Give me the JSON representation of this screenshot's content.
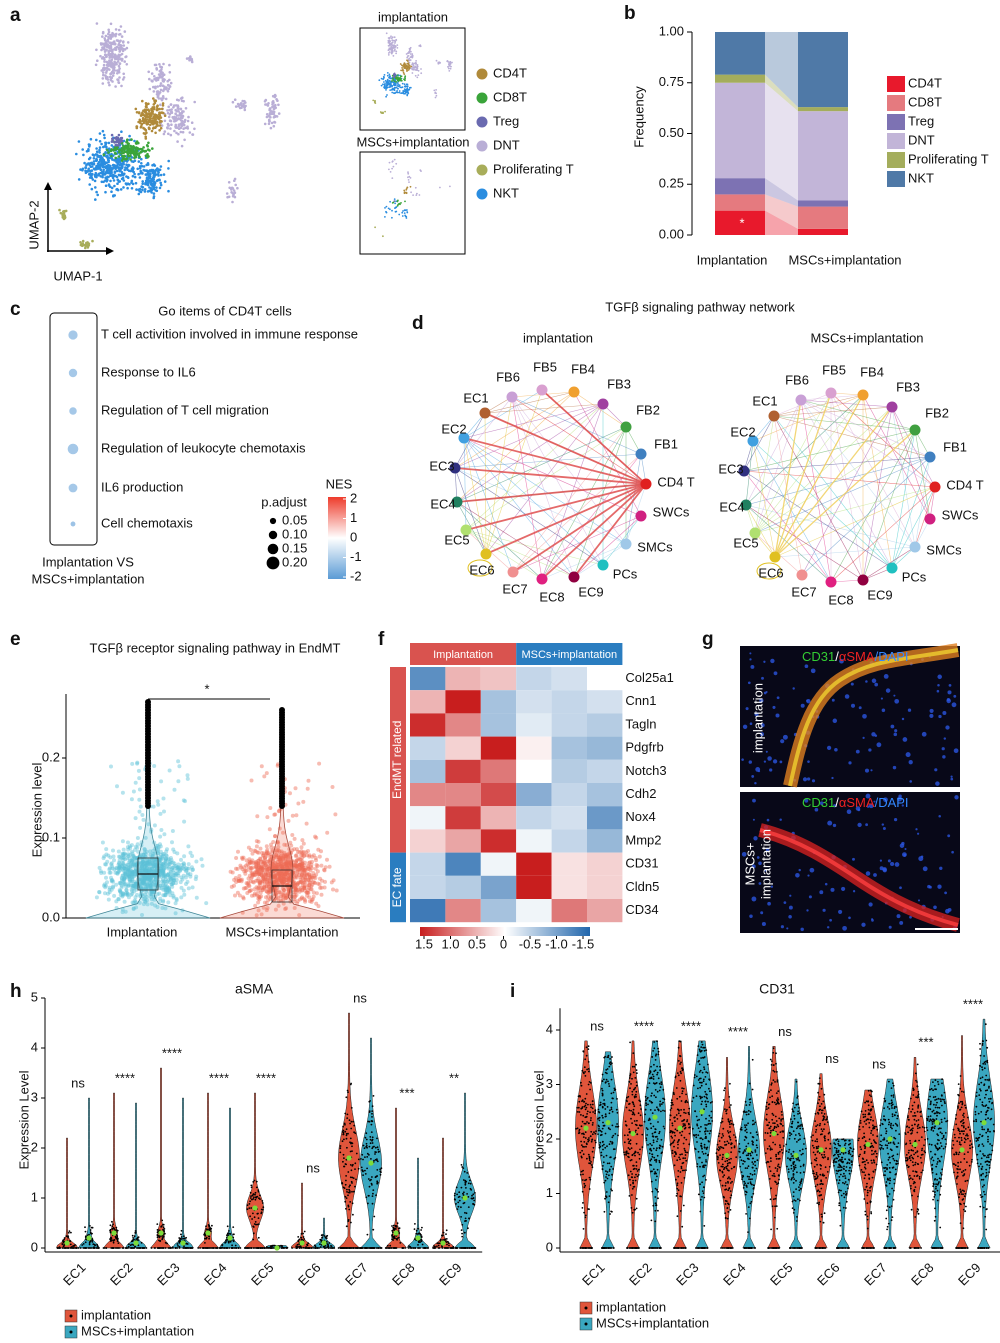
{
  "panel_labels": [
    "a",
    "b",
    "c",
    "d",
    "e",
    "f",
    "g",
    "h",
    "i"
  ],
  "umap": {
    "x_label": "UMAP-1",
    "y_label": "UMAP-2",
    "insets": [
      "implantation",
      "MSCs+implantation"
    ],
    "legend": [
      {
        "name": "CD4T",
        "color": "#b08a3a"
      },
      {
        "name": "CD8T",
        "color": "#3aa43a"
      },
      {
        "name": "Treg",
        "color": "#6a6ab0"
      },
      {
        "name": "DNT",
        "color": "#b9aed6"
      },
      {
        "name": "Proliferating T",
        "color": "#a8ad5a"
      },
      {
        "name": "NKT",
        "color": "#2a8de0"
      }
    ]
  },
  "network": {
    "title": "TGFβ signaling pathway network",
    "groups": [
      "implantation",
      "MSCs+implantation"
    ],
    "nodes": [
      {
        "label": "FB5",
        "color": "#d9a0d0"
      },
      {
        "label": "FB4",
        "color": "#f0a030"
      },
      {
        "label": "FB3",
        "color": "#a040a0"
      },
      {
        "label": "FB2",
        "color": "#40a040"
      },
      {
        "label": "FB1",
        "color": "#4080c0"
      },
      {
        "label": "CD4 T",
        "color": "#e02020"
      },
      {
        "label": "SWCs",
        "color": "#d02080"
      },
      {
        "label": "SMCs",
        "color": "#a0c8e8"
      },
      {
        "label": "PCs",
        "color": "#20c0c0"
      },
      {
        "label": "EC9",
        "color": "#900040"
      },
      {
        "label": "EC8",
        "color": "#e02080"
      },
      {
        "label": "EC7",
        "color": "#f09090"
      },
      {
        "label": "EC6",
        "color": "#e0c020"
      },
      {
        "label": "EC5",
        "color": "#b0e070"
      },
      {
        "label": "EC4",
        "color": "#208060"
      },
      {
        "label": "EC3",
        "color": "#303080"
      },
      {
        "label": "EC2",
        "color": "#40a0e0"
      },
      {
        "label": "EC1",
        "color": "#b06030"
      },
      {
        "label": "FB6",
        "color": "#c9a0d6"
      }
    ]
  },
  "images": {
    "stains": [
      {
        "text": "CD31",
        "color": "#33cc33"
      },
      {
        "text": "αSMA",
        "color": "#ee2222"
      },
      {
        "text": "DAPI",
        "color": "#3388ff"
      }
    ],
    "separator": "/",
    "labels": [
      [
        "implantation"
      ],
      [
        "MSCs+",
        "implantation"
      ]
    ]
  },
  "chart_data": [
    {
      "type": "stacked_bar",
      "y_label": "Frequency",
      "categories": [
        "Implantation",
        "MSCs+implantation"
      ],
      "series": [
        {
          "name": "CD4T",
          "color": "#e8192c",
          "values": [
            0.12,
            0.03
          ]
        },
        {
          "name": "CD8T",
          "color": "#e57a7f",
          "values": [
            0.08,
            0.11
          ]
        },
        {
          "name": "Treg",
          "color": "#7d72b3",
          "values": [
            0.08,
            0.03
          ]
        },
        {
          "name": "DNT",
          "color": "#c2b5d8",
          "values": [
            0.47,
            0.44
          ]
        },
        {
          "name": "Proliferating T",
          "color": "#a4ad5c",
          "values": [
            0.04,
            0.02
          ]
        },
        {
          "name": "NKT",
          "color": "#4f79a7",
          "values": [
            0.21,
            0.37
          ]
        }
      ],
      "ylim": [
        0,
        1
      ],
      "yticks": [
        {
          "value": 0,
          "label": "0.00"
        },
        0.25,
        {
          "value": 0.5,
          "label": "0.50"
        },
        0.75,
        {
          "value": 1,
          "label": "1.00"
        }
      ],
      "annotations": [
        "*"
      ]
    },
    {
      "type": "dot",
      "title": "Go items of CD4T cells",
      "categories": [
        "T cell activition involved in immune response",
        "Response to IL6",
        "Regulation of T cell migration",
        "Regulation of leukocyte chemotaxis",
        "IL6 production",
        "Cell chemotaxis"
      ],
      "values": [
        0.12,
        0.1,
        0.08,
        0.15,
        0.11,
        0.02
      ],
      "color_values": [
        -1.1,
        -1.1,
        -1.1,
        -1.1,
        -1.1,
        -1.2
      ],
      "x_label_lines": [
        "Implantation VS",
        "MSCs+implantation"
      ],
      "size_legend_title": "p.adjust",
      "size_ticks": [
        0.05,
        {
          "value": 0.1,
          "label": "0.10"
        },
        0.15,
        {
          "value": 0.2,
          "label": "0.20"
        }
      ],
      "color_legend_title": "NES",
      "color_ticks": [
        2,
        1,
        0,
        -1,
        -2
      ],
      "clim": [
        -2,
        2
      ],
      "colors": [
        "#5b9bd5",
        "#ffffff",
        "#ee3b2b"
      ]
    },
    {
      "type": "violin",
      "title": "TGFβ receptor signaling pathway in EndMT",
      "y_label": "Expression level",
      "categories": [
        "Implantation",
        "MSCs+implantation"
      ],
      "colors": [
        "#5bc0d8",
        "#ee6a55"
      ],
      "medians": [
        0.055,
        0.04
      ],
      "maxima": [
        0.27,
        0.26
      ],
      "ylim": [
        0,
        0.28
      ],
      "yticks": [
        {
          "value": 0,
          "label": "0.0"
        },
        0.1,
        0.2
      ],
      "significance": "*"
    },
    {
      "type": "heatmap",
      "column_groups": [
        {
          "name": "Implantation",
          "span": 3,
          "color": "#d9534f"
        },
        {
          "name": "MSCs+implantation",
          "span": 3,
          "color": "#2a7dc0"
        }
      ],
      "row_groups": [
        {
          "name": "EndMT related",
          "span": 8,
          "color": "#d9534f"
        },
        {
          "name": "EC fate",
          "span": 3,
          "color": "#2a7dc0"
        }
      ],
      "rows": [
        "Col25a1",
        "Cnn1",
        "Tagln",
        "Pdgfrb",
        "Notch3",
        "Cdh2",
        "Nox4",
        "Mmp2",
        "CD31",
        "Cldn5",
        "CD34"
      ],
      "values": [
        [
          -1.1,
          0.5,
          0.4,
          -0.4,
          -0.3,
          0
        ],
        [
          0.5,
          1.5,
          -0.6,
          -0.3,
          -0.4,
          -0.3
        ],
        [
          1.4,
          0.8,
          -0.6,
          -0.2,
          -0.4,
          -0.5
        ],
        [
          -0.4,
          0.3,
          1.5,
          0.1,
          -0.6,
          -0.7
        ],
        [
          -0.6,
          1.3,
          0.9,
          0,
          -0.5,
          -0.4
        ],
        [
          0.8,
          0.8,
          1.2,
          -0.8,
          -0.4,
          -0.6
        ],
        [
          -0.1,
          1.3,
          0.5,
          -0.4,
          -0.3,
          -1
        ],
        [
          0.3,
          0.6,
          1.4,
          -0.1,
          -0.4,
          -0.7
        ],
        [
          -0.4,
          -1.2,
          -0.1,
          1.5,
          0.2,
          0.3
        ],
        [
          -0.4,
          -0.5,
          -0.9,
          1.6,
          0.2,
          0.3
        ],
        [
          -1.3,
          0.8,
          -0.6,
          -0.1,
          0.9,
          0.6
        ]
      ],
      "clim": [
        -1.5,
        1.5
      ],
      "colors": [
        "#2166ac",
        "#ffffff",
        "#c81e1e"
      ],
      "colorbar_ticks": [
        1.5,
        {
          "value": 1,
          "label": "1.0"
        },
        0.5,
        0,
        -0.5,
        {
          "value": -1,
          "label": "-1.0"
        },
        -1.5
      ]
    },
    {
      "type": "split_violin",
      "title": "aSMA",
      "y_label": "Expression Level",
      "categories": [
        "EC1",
        "EC2",
        "EC3",
        "EC4",
        "EC5",
        "EC6",
        "EC7",
        "EC8",
        "EC9"
      ],
      "series": [
        {
          "name": "implantation",
          "color": "#e0553b",
          "values": [
            0.1,
            0.3,
            0.3,
            0.3,
            0.8,
            0.1,
            1.8,
            0.3,
            0.1
          ],
          "maxima": [
            2.2,
            3.1,
            3.6,
            3.1,
            3.1,
            1.3,
            4.7,
            2.8,
            2.2
          ]
        },
        {
          "name": "MSCs+implantation",
          "color": "#3aa7c0",
          "values": [
            0.2,
            0.1,
            0.1,
            0.2,
            0,
            0.1,
            1.7,
            0.2,
            1
          ],
          "maxima": [
            3,
            2.9,
            3,
            2.8,
            0.05,
            0.6,
            4.2,
            1.8,
            3.1
          ]
        }
      ],
      "significance": [
        "ns",
        "****",
        "****",
        "****",
        "****",
        "ns",
        "ns",
        "***",
        "**"
      ],
      "ylim": [
        0,
        5
      ],
      "yticks": [
        0,
        1,
        2,
        3,
        4,
        5
      ]
    },
    {
      "type": "split_violin",
      "title": "CD31",
      "y_label": "Expression Level",
      "categories": [
        "EC1",
        "EC2",
        "EC3",
        "EC4",
        "EC5",
        "EC6",
        "EC7",
        "EC8",
        "EC9"
      ],
      "series": [
        {
          "name": "implantation",
          "color": "#e0553b",
          "values": [
            2.2,
            2.1,
            2.2,
            1.7,
            2.1,
            1.8,
            1.9,
            1.9,
            1.8
          ],
          "maxima": [
            3.8,
            3.8,
            3.8,
            3.5,
            3.7,
            3.2,
            2.9,
            3.5,
            3.9
          ]
        },
        {
          "name": "MSCs+implantation",
          "color": "#3aa7c0",
          "values": [
            2.3,
            2.4,
            2.5,
            1.8,
            1.7,
            1.8,
            2,
            2.3,
            2.3
          ],
          "maxima": [
            3.6,
            3.8,
            3.8,
            3.7,
            3.1,
            2,
            3.1,
            3.1,
            4.2
          ]
        }
      ],
      "significance": [
        "ns",
        "****",
        "****",
        "****",
        "ns",
        "ns",
        "ns",
        "***",
        "****"
      ],
      "ylim": [
        0,
        4.4
      ],
      "yticks": [
        0,
        1,
        2,
        3,
        4
      ]
    }
  ]
}
